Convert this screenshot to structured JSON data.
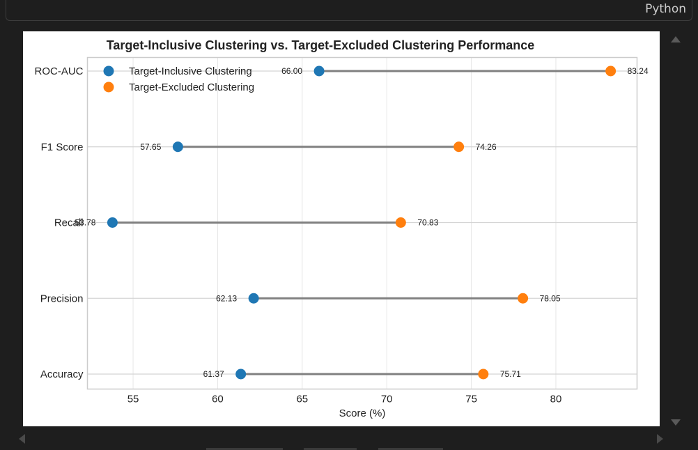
{
  "toolbar": {
    "language_label": "Python"
  },
  "colors": {
    "series_inclusive": "#1f77b4",
    "series_excluded": "#ff7f0e",
    "connector": "#808080",
    "grid": "#e6e6e6",
    "axis_frame": "#cccccc"
  },
  "icons": {
    "scroll_up": "triangle-up-icon",
    "scroll_down": "triangle-down-icon",
    "scroll_left": "triangle-left-icon",
    "scroll_right": "triangle-right-icon"
  },
  "chart_data": {
    "type": "scatter",
    "style": "dumbbell",
    "title": "Target-Inclusive Clustering vs. Target-Excluded Clustering Performance",
    "xlabel": "Score (%)",
    "ylabel": "",
    "xlim": [
      52.3,
      84.8
    ],
    "xticks": [
      55,
      60,
      65,
      70,
      75,
      80
    ],
    "grid": true,
    "legend_position": "upper left",
    "categories": [
      "ROC-AUC",
      "F1 Score",
      "Recall",
      "Precision",
      "Accuracy"
    ],
    "series": [
      {
        "name": "Target-Inclusive Clustering",
        "values": [
          66.0,
          57.65,
          53.78,
          62.13,
          61.37
        ],
        "labels": [
          "66.00",
          "57.65",
          "53.78",
          "62.13",
          "61.37"
        ]
      },
      {
        "name": "Target-Excluded Clustering",
        "values": [
          83.24,
          74.26,
          70.83,
          78.05,
          75.71
        ],
        "labels": [
          "83.24",
          "74.26",
          "70.83",
          "78.05",
          "75.71"
        ]
      }
    ]
  }
}
